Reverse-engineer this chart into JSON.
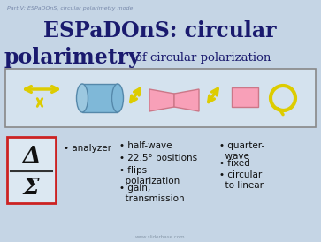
{
  "bg_color": "#c5d5e5",
  "border_color": "#888888",
  "title_color": "#1a1a6e",
  "subtitle_small": "Part V: ESPaDOnS, circular polarimetry mode",
  "arrow_color": "#ddcc00",
  "cylinder_face": "#7fb8d8",
  "cylinder_edge": "#5588aa",
  "prism_color": "#f8a0b8",
  "prism_edge": "#cc7788",
  "circle_color": "#ddcc00",
  "delta_sigma_border": "#cc2222",
  "icon_box_face": "#d4e2ee",
  "bullet_col2": [
    "half-wave",
    "22.5° positions",
    "flips\npolarization",
    "gain,\ntransmission"
  ],
  "bullet_col3": [
    "quarter-\nwave",
    "fixed",
    "circular\nto linear"
  ],
  "watermark": "www.sliderbase.com"
}
